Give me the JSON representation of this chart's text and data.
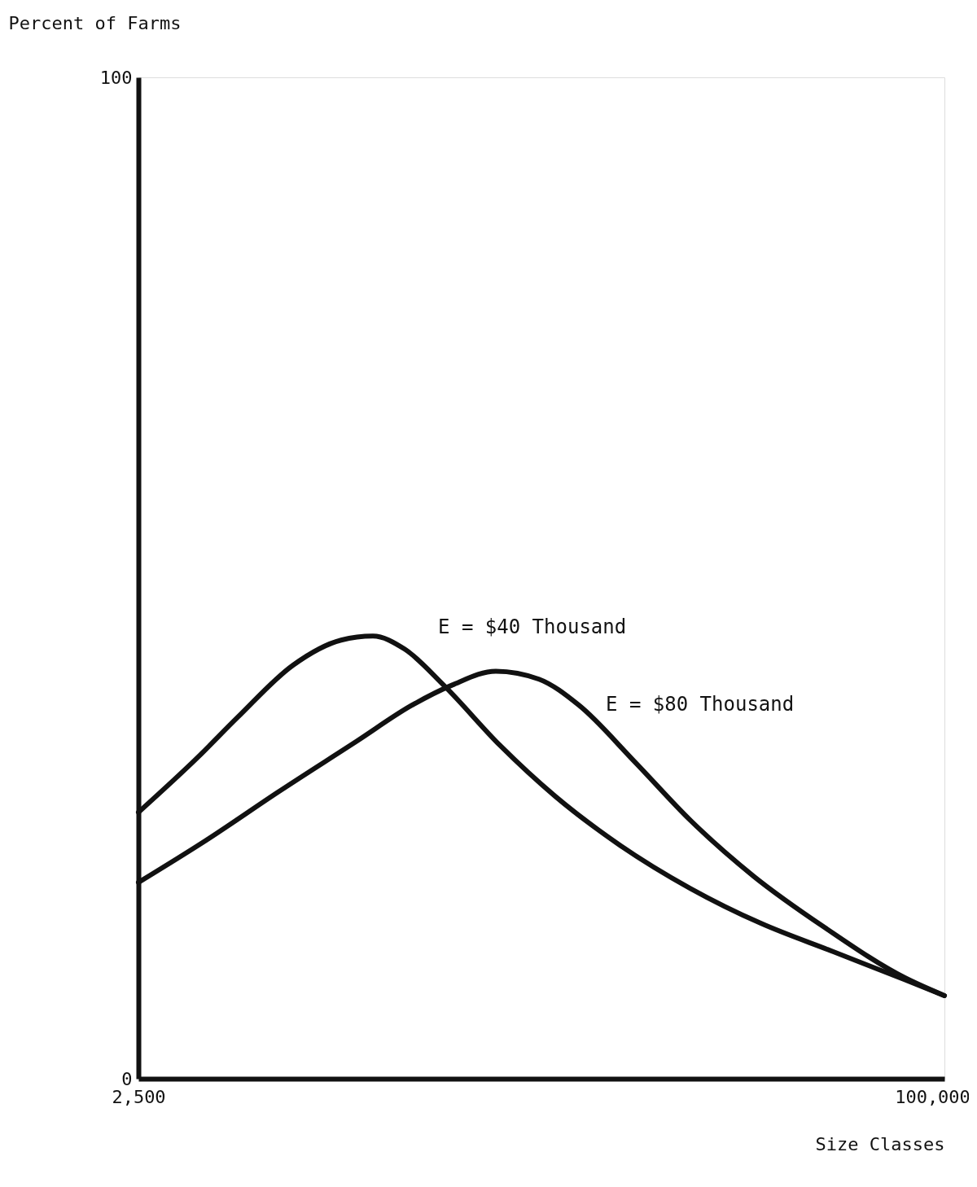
{
  "chart_data": {
    "type": "line",
    "xlabel": "Size Classes",
    "ylabel": "Percent of Farms",
    "xlim": [
      2500,
      101500
    ],
    "xticks": [
      {
        "value": 2500,
        "label": "2,500"
      },
      {
        "value": 100000,
        "label": "100,000"
      }
    ],
    "ylim": [
      0,
      100
    ],
    "yticks": [
      0,
      100
    ],
    "grid": false,
    "marker": "none",
    "line_style": "solid",
    "series": [
      {
        "name": "E = $40 Thousand",
        "color": "#111111",
        "x": [
          2500,
          9800,
          14700,
          21500,
          27400,
          31300,
          35200,
          40000,
          46900,
          53700,
          61500,
          70300,
          79000,
          87800,
          96600,
          101500
        ],
        "values": [
          26.6,
          32.1,
          36.1,
          41.3,
          43.8,
          44.2,
          42.9,
          39.3,
          33.3,
          28.2,
          23.4,
          19.0,
          15.5,
          12.7,
          9.9,
          8.3
        ]
      },
      {
        "name": "E = $80 Thousand",
        "color": "#111111",
        "x": [
          2500,
          10800,
          19600,
          29300,
          36100,
          41000,
          46400,
          51700,
          56600,
          63400,
          70300,
          78100,
          86800,
          96600,
          101500
        ],
        "values": [
          19.6,
          23.8,
          28.6,
          33.7,
          37.3,
          39.3,
          40.7,
          39.9,
          37.3,
          31.7,
          25.8,
          20.2,
          15.1,
          10.1,
          8.3
        ]
      }
    ]
  }
}
